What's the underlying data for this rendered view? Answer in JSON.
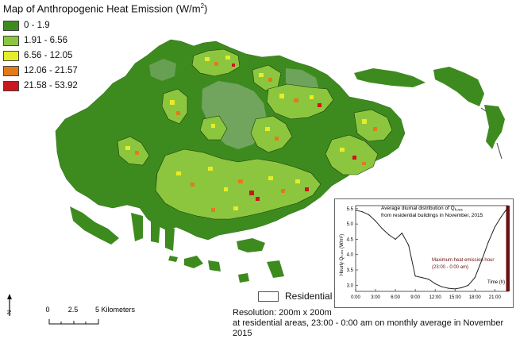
{
  "map": {
    "title": "Map of Anthropogenic Heat Emission (W/m",
    "title_sup": "2",
    "title_close": ")",
    "legend": [
      {
        "label": "0 - 1.9",
        "color": "#3d8b1e"
      },
      {
        "label": "1.91 - 6.56",
        "color": "#8cc63f"
      },
      {
        "label": "6.56 - 12.05",
        "color": "#e6ed28"
      },
      {
        "label": "12.06 - 21.57",
        "color": "#e37a1a"
      },
      {
        "label": "21.58 - 53.92",
        "color": "#c8171e"
      }
    ],
    "residential_label": "Residential Area",
    "resolution_note": "Resolution: 200m x 200m",
    "average_note": "at residential areas, 23:00 - 0:00 am on monthly average in November 2015",
    "scale_labels": [
      "0",
      "2.5",
      "5 Kilometers"
    ],
    "north_label": "N",
    "colors": {
      "land": "#3d8b1e",
      "land_light": "#7aa96a",
      "heat_low": "#8cc63f",
      "heat_mid": "#e6ed28",
      "heat_high": "#e37a1a",
      "heat_max": "#c8171e"
    }
  },
  "chart_data": {
    "type": "line",
    "title_line1": "Average diurnal distribution of Q",
    "title_line1_sub": "h,res",
    "title_line2": "from residential buildings in November, 2015",
    "ylabel": "Hourly Q",
    "ylabel_sub": "h,res",
    "ylabel_unit": " (W/m²)",
    "xlabel": "Time (h)",
    "x_ticks": [
      "0:00",
      "3:00",
      "6:00",
      "9:00",
      "12:00",
      "15:00",
      "18:00",
      "21:00"
    ],
    "y_ticks": [
      "3.0",
      "3.5",
      "4.0",
      "4.5",
      "5.0",
      "5.5"
    ],
    "ylim": [
      2.8,
      5.6
    ],
    "xlim": [
      0,
      23
    ],
    "x": [
      0,
      1,
      2,
      3,
      4,
      5,
      6,
      7,
      8,
      9,
      10,
      11,
      12,
      13,
      14,
      15,
      16,
      17,
      18,
      19,
      20,
      21,
      22,
      23
    ],
    "values": [
      5.45,
      5.4,
      5.3,
      5.1,
      4.85,
      4.65,
      4.5,
      4.7,
      4.3,
      3.3,
      3.25,
      3.2,
      3.05,
      2.95,
      2.9,
      2.88,
      2.92,
      3.0,
      3.25,
      3.8,
      4.4,
      4.9,
      5.25,
      5.55
    ],
    "annotation_line1": "Maximum heat emission hour",
    "annotation_line2": "(23:00 - 0:00 am)",
    "highlight_color": "#6b1010",
    "line_color": "#222222"
  }
}
